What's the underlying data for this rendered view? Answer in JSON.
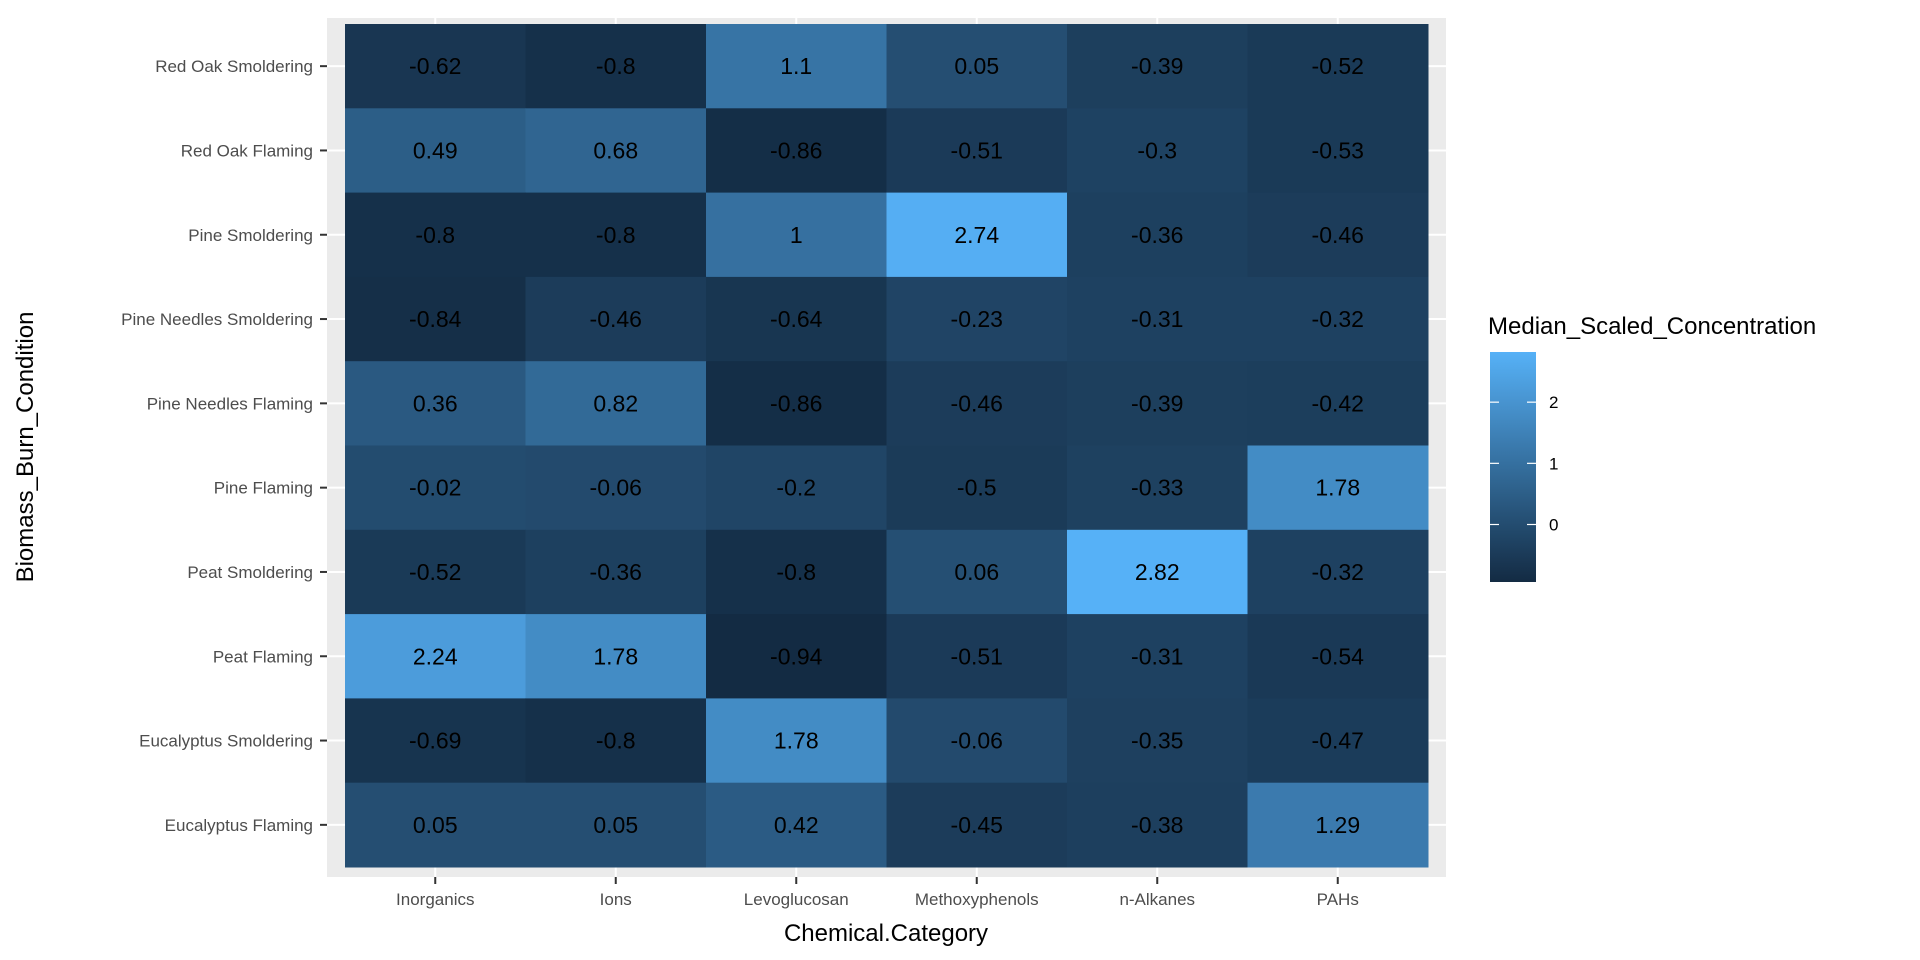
{
  "chart_data": {
    "type": "heatmap",
    "title": "",
    "xlabel": "Chemical.Category",
    "ylabel": "Biomass_Burn_Condition",
    "x_categories": [
      "Inorganics",
      "Ions",
      "Levoglucosan",
      "Methoxyphenols",
      "n-Alkanes",
      "PAHs"
    ],
    "y_categories": [
      "Red Oak Smoldering",
      "Red Oak Flaming",
      "Pine Smoldering",
      "Pine Needles Smoldering",
      "Pine Needles Flaming",
      "Pine Flaming",
      "Peat Smoldering",
      "Peat Flaming",
      "Eucalyptus Smoldering",
      "Eucalyptus Flaming"
    ],
    "values": [
      [
        -0.62,
        -0.8,
        1.1,
        0.05,
        -0.39,
        -0.52
      ],
      [
        0.49,
        0.68,
        -0.86,
        -0.51,
        -0.3,
        -0.53
      ],
      [
        -0.8,
        -0.8,
        1,
        2.74,
        -0.36,
        -0.46
      ],
      [
        -0.84,
        -0.46,
        -0.64,
        -0.23,
        -0.31,
        -0.32
      ],
      [
        0.36,
        0.82,
        -0.86,
        -0.46,
        -0.39,
        -0.42
      ],
      [
        -0.02,
        -0.06,
        -0.2,
        -0.5,
        -0.33,
        1.78
      ],
      [
        -0.52,
        -0.36,
        -0.8,
        0.06,
        2.82,
        -0.32
      ],
      [
        2.24,
        1.78,
        -0.94,
        -0.51,
        -0.31,
        -0.54
      ],
      [
        -0.69,
        -0.8,
        1.78,
        -0.06,
        -0.35,
        -0.47
      ],
      [
        0.05,
        0.05,
        0.42,
        -0.45,
        -0.38,
        1.29
      ]
    ],
    "legend": {
      "title": "Median_Scaled_Concentration",
      "ticks": [
        "2",
        "1",
        "0"
      ],
      "tick_values": [
        2,
        1,
        0
      ],
      "range": [
        -0.94,
        2.82
      ],
      "low_color": "#132B43",
      "high_color": "#56B1F7",
      "placement": "right"
    },
    "panel_background": "#EBEBEB",
    "grid": true
  }
}
